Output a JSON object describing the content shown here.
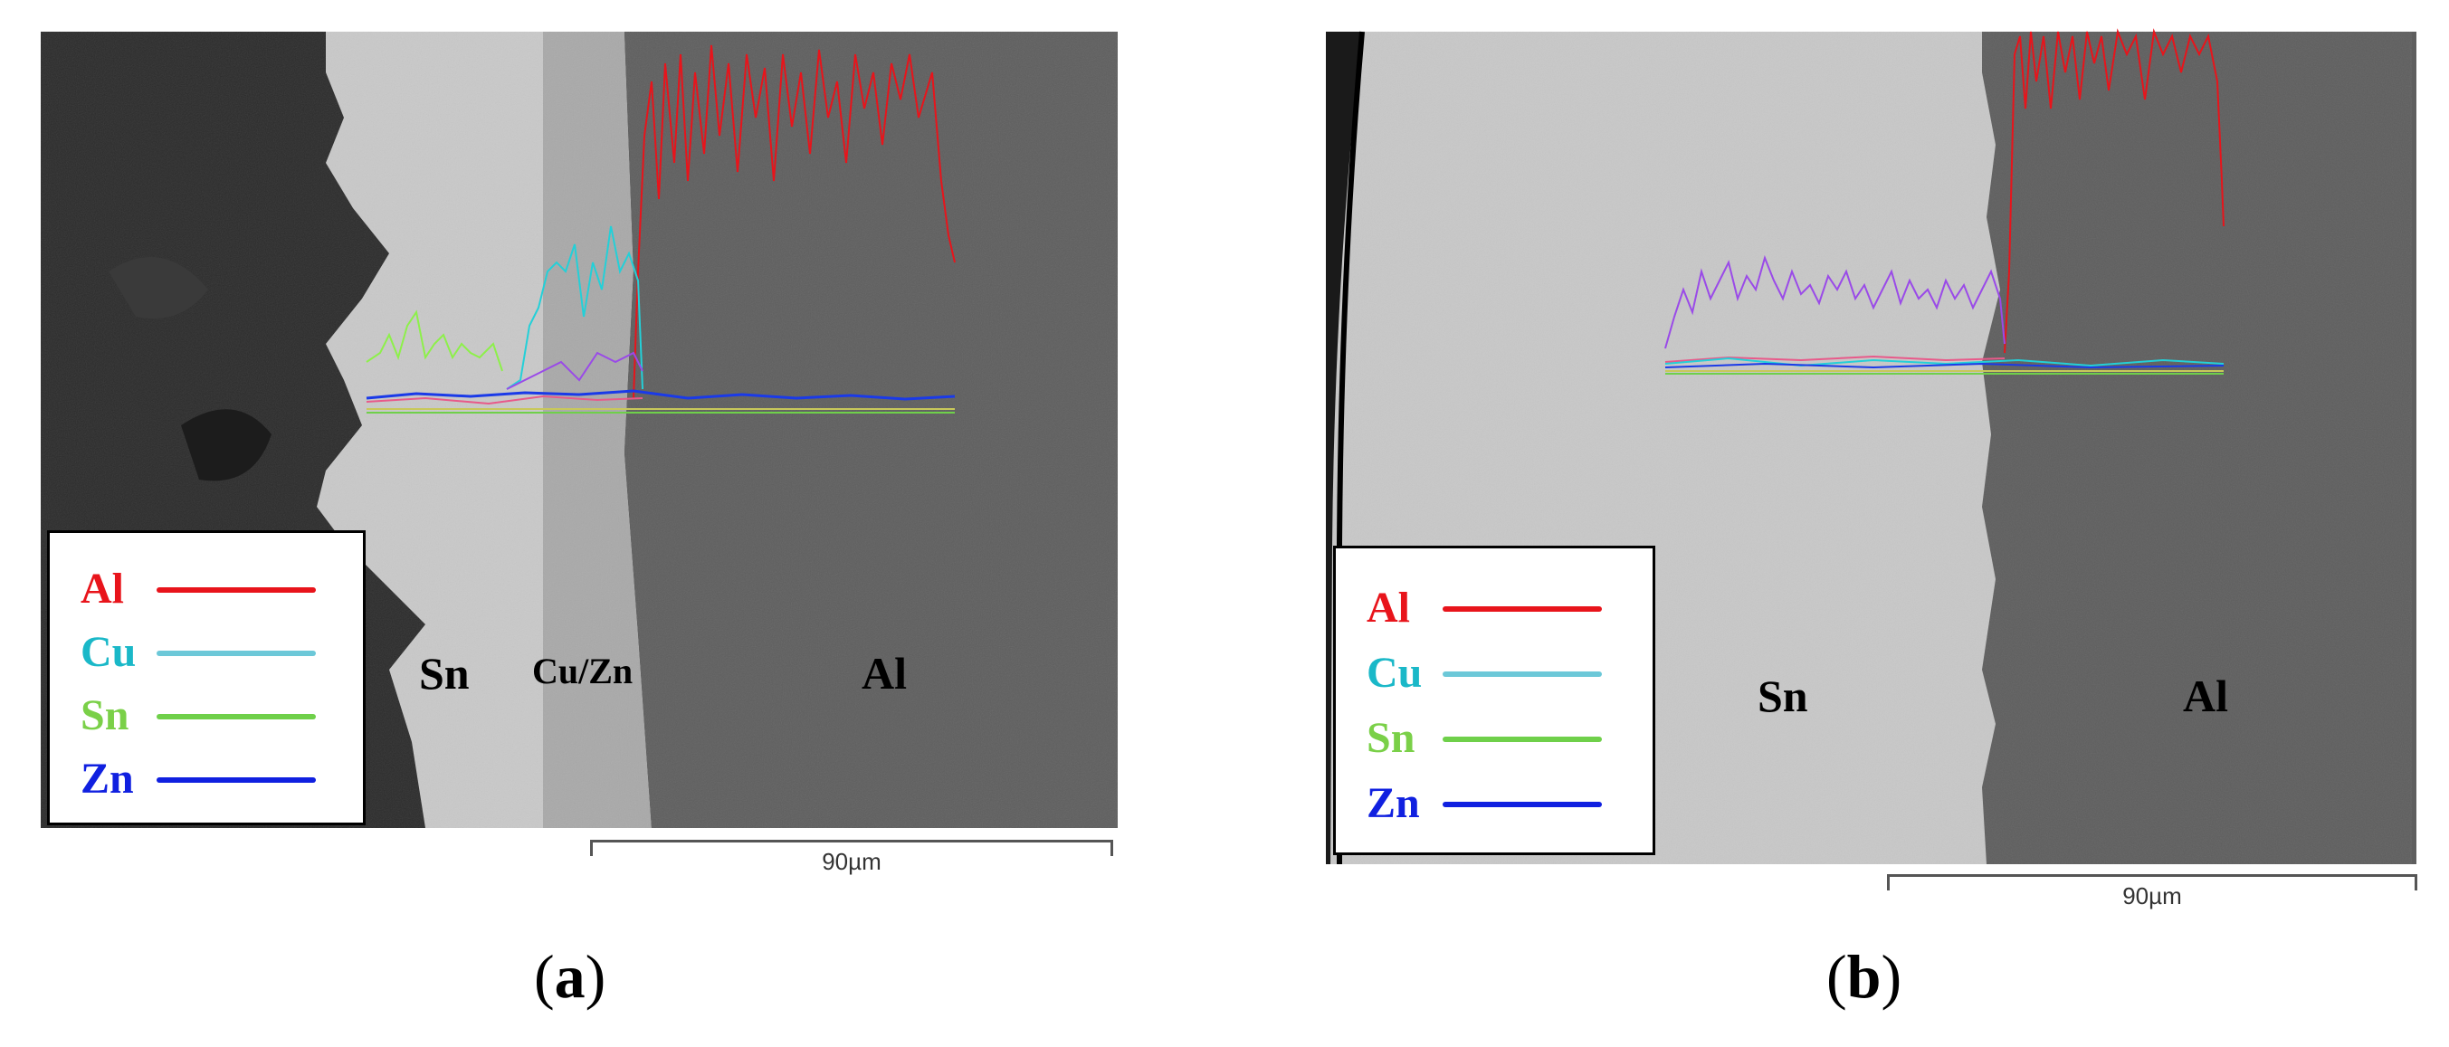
{
  "panels": [
    {
      "id": "a",
      "caption_open": "(",
      "caption_letter": "a",
      "caption_close": ")",
      "phase_labels": {
        "left": "Sn",
        "middle": "Cu/Zn",
        "right": "Al"
      },
      "scale_bar": "90µm",
      "legend": [
        {
          "element": "Al",
          "color": "#e8141b"
        },
        {
          "element": "Cu",
          "color": "#6cc8d8"
        },
        {
          "element": "Sn",
          "color": "#6fd04a"
        },
        {
          "element": "Zn",
          "color": "#1020e0"
        }
      ]
    },
    {
      "id": "b",
      "caption_open": "(",
      "caption_letter": "b",
      "caption_close": ")",
      "phase_labels": {
        "left": "Sn",
        "right": "Al"
      },
      "scale_bar": "90µm",
      "legend": [
        {
          "element": "Al",
          "color": "#e8141b"
        },
        {
          "element": "Cu",
          "color": "#6cc8d8"
        },
        {
          "element": "Sn",
          "color": "#6fd04a"
        },
        {
          "element": "Zn",
          "color": "#1020e0"
        }
      ]
    }
  ],
  "text_colors": {
    "Al": "#e8141b",
    "Cu": "#1ab8c8",
    "Sn": "#7ad048",
    "Zn": "#1020e0"
  }
}
